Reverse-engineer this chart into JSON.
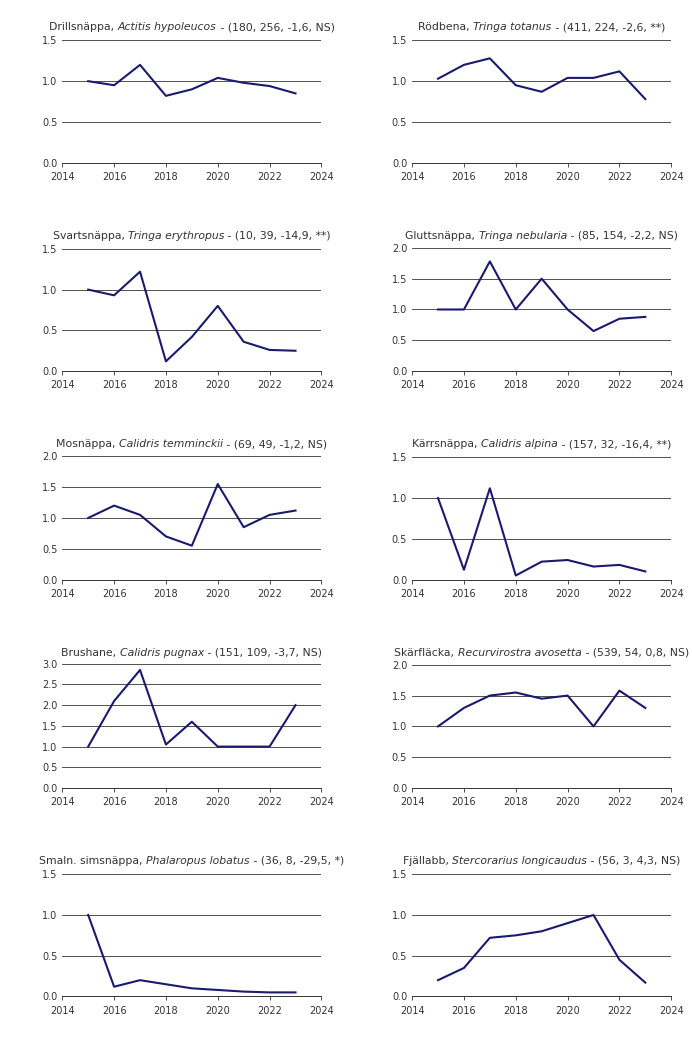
{
  "line_color": "#1a1a6e",
  "line_width": 1.5,
  "background_color": "#ffffff",
  "hline_color": "#333333",
  "tick_color": "#333333",
  "title_fontsize": 7.8,
  "tick_fontsize": 7.0,
  "subplots": [
    {
      "title_pre": "Drillsnäppa, ",
      "title_italic": "Actitis hypoleucos",
      "title_post": " - (180, 256, -1,6, NS)",
      "years": [
        2015,
        2016,
        2017,
        2018,
        2019,
        2020,
        2021,
        2022,
        2023
      ],
      "values": [
        1.0,
        0.95,
        1.2,
        0.82,
        0.9,
        1.04,
        0.98,
        0.94,
        0.85
      ],
      "ylim": [
        0.0,
        1.55
      ],
      "yticks": [
        0.0,
        0.5,
        1.0,
        1.5
      ]
    },
    {
      "title_pre": "Rödbena, ",
      "title_italic": "Tringa totanus",
      "title_post": " - (411, 224, -2,6, **)",
      "years": [
        2015,
        2016,
        2017,
        2018,
        2019,
        2020,
        2021,
        2022,
        2023
      ],
      "values": [
        1.03,
        1.2,
        1.28,
        0.95,
        0.87,
        1.04,
        1.04,
        1.12,
        0.78
      ],
      "ylim": [
        0.0,
        1.55
      ],
      "yticks": [
        0.0,
        0.5,
        1.0,
        1.5
      ]
    },
    {
      "title_pre": "Svartsnäppa, ",
      "title_italic": "Tringa erythropus",
      "title_post": " - (10, 39, -14,9, **)",
      "years": [
        2015,
        2016,
        2017,
        2018,
        2019,
        2020,
        2021,
        2022,
        2023
      ],
      "values": [
        1.0,
        0.93,
        1.22,
        0.12,
        0.42,
        0.8,
        0.36,
        0.26,
        0.25
      ],
      "ylim": [
        0.0,
        1.55
      ],
      "yticks": [
        0.0,
        0.5,
        1.0,
        1.5
      ]
    },
    {
      "title_pre": "Gluttsnäppa, ",
      "title_italic": "Tringa nebularia",
      "title_post": " - (85, 154, -2,2, NS)",
      "years": [
        2015,
        2016,
        2017,
        2018,
        2019,
        2020,
        2021,
        2022,
        2023
      ],
      "values": [
        1.0,
        1.0,
        1.78,
        1.0,
        1.5,
        1.0,
        0.65,
        0.85,
        0.88
      ],
      "ylim": [
        0.0,
        2.05
      ],
      "yticks": [
        0.0,
        0.5,
        1.0,
        1.5,
        2.0
      ]
    },
    {
      "title_pre": "Mosnäppa, ",
      "title_italic": "Calidris temminckii",
      "title_post": " - (69, 49, -1,2, NS)",
      "years": [
        2015,
        2016,
        2017,
        2018,
        2019,
        2020,
        2021,
        2022,
        2023
      ],
      "values": [
        1.0,
        1.2,
        1.05,
        0.7,
        0.55,
        1.55,
        0.85,
        1.05,
        1.12
      ],
      "ylim": [
        0.0,
        2.05
      ],
      "yticks": [
        0.0,
        0.5,
        1.0,
        1.5,
        2.0
      ]
    },
    {
      "title_pre": "Kärrsnäppa, ",
      "title_italic": "Calidris alpina",
      "title_post": " - (157, 32, -16,4, **)",
      "years": [
        2015,
        2016,
        2017,
        2018,
        2019,
        2020,
        2021,
        2022,
        2023
      ],
      "values": [
        1.0,
        0.12,
        1.12,
        0.05,
        0.22,
        0.24,
        0.16,
        0.18,
        0.1
      ],
      "ylim": [
        0.0,
        1.55
      ],
      "yticks": [
        0.0,
        0.5,
        1.0,
        1.5
      ]
    },
    {
      "title_pre": "Brushane, ",
      "title_italic": "Calidris pugnax",
      "title_post": " - (151, 109, -3,7, NS)",
      "years": [
        2015,
        2016,
        2017,
        2018,
        2019,
        2020,
        2021,
        2022,
        2023
      ],
      "values": [
        1.0,
        2.1,
        2.85,
        1.05,
        1.6,
        1.0,
        1.0,
        1.0,
        2.0
      ],
      "ylim": [
        0.0,
        3.05
      ],
      "yticks": [
        0.0,
        0.5,
        1.0,
        1.5,
        2.0,
        2.5,
        3.0
      ]
    },
    {
      "title_pre": "Skärfläcka, ",
      "title_italic": "Recurvirostra avosetta",
      "title_post": " - (539, 54, 0,8, NS)",
      "years": [
        2015,
        2016,
        2017,
        2018,
        2019,
        2020,
        2021,
        2022,
        2023
      ],
      "values": [
        1.0,
        1.3,
        1.5,
        1.55,
        1.45,
        1.5,
        1.0,
        1.58,
        1.3
      ],
      "ylim": [
        0.0,
        2.05
      ],
      "yticks": [
        0.0,
        0.5,
        1.0,
        1.5,
        2.0
      ]
    },
    {
      "title_pre": "Smaln. simsnäppa, ",
      "title_italic": "Phalaropus lobatus",
      "title_post": " - (36, 8, -29,5, *)",
      "years": [
        2015,
        2016,
        2017,
        2018,
        2019,
        2020,
        2021,
        2022,
        2023
      ],
      "values": [
        1.0,
        0.12,
        0.2,
        0.15,
        0.1,
        0.08,
        0.06,
        0.05,
        0.05
      ],
      "ylim": [
        0.0,
        1.55
      ],
      "yticks": [
        0.0,
        0.5,
        1.0,
        1.5
      ]
    },
    {
      "title_pre": "Fjällabb, ",
      "title_italic": "Stercorarius longicaudus",
      "title_post": " - (56, 3, 4,3, NS)",
      "years": [
        2015,
        2016,
        2017,
        2018,
        2019,
        2020,
        2021,
        2022,
        2023
      ],
      "values": [
        0.2,
        0.35,
        0.72,
        0.75,
        0.8,
        0.9,
        1.0,
        0.45,
        0.17
      ],
      "ylim": [
        0.0,
        1.55
      ],
      "yticks": [
        0.0,
        0.5,
        1.0,
        1.5
      ]
    }
  ]
}
